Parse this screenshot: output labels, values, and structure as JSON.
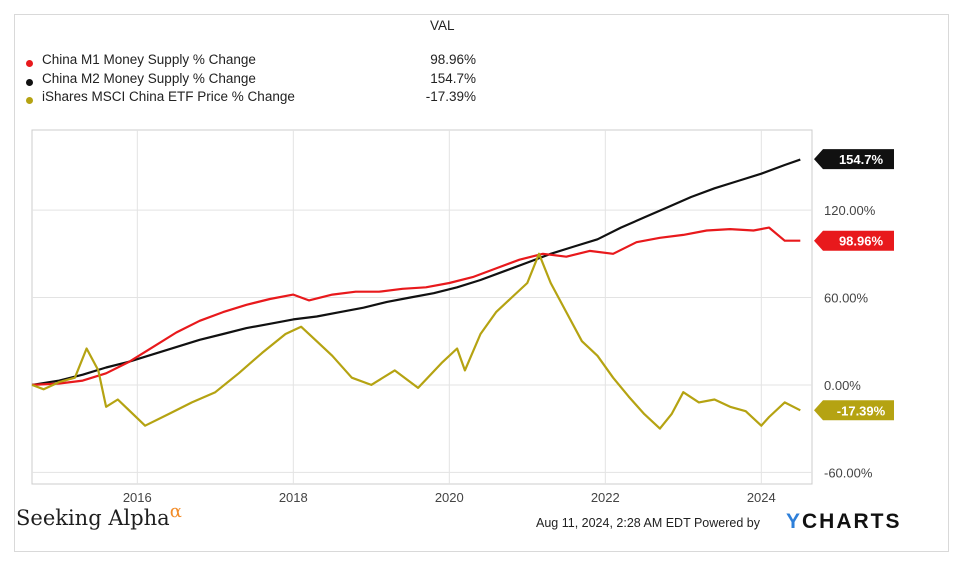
{
  "legend": {
    "value_header": "VAL",
    "items": [
      {
        "label": "China M1 Money Supply % Change",
        "value": "98.96%",
        "color": "#e8191c"
      },
      {
        "label": "China M2 Money Supply % Change",
        "value": "154.7%",
        "color": "#111111"
      },
      {
        "label": "iShares MSCI China ETF Price % Change",
        "value": "-17.39%",
        "color": "#b5a312"
      }
    ]
  },
  "chart_data": {
    "type": "line",
    "title": "",
    "xlabel": "",
    "ylabel": "",
    "xlim": [
      2014.65,
      2024.65
    ],
    "ylim": [
      -68,
      175
    ],
    "x_ticks": [
      2016,
      2018,
      2020,
      2022,
      2024
    ],
    "x_tick_labels": [
      "2016",
      "2018",
      "2020",
      "2022",
      "2024"
    ],
    "y_ticks": [
      -60,
      0,
      60,
      120
    ],
    "y_tick_labels": [
      "-60.00%",
      "0.00%",
      "60.00%",
      "120.00%"
    ],
    "grid": true,
    "legend_position": "top-left",
    "series": [
      {
        "name": "China M1 Money Supply % Change",
        "color": "#e8191c",
        "end_label": "98.96%",
        "x": [
          2014.65,
          2015.0,
          2015.3,
          2015.6,
          2015.9,
          2016.2,
          2016.5,
          2016.8,
          2017.1,
          2017.4,
          2017.7,
          2018.0,
          2018.2,
          2018.5,
          2018.8,
          2019.1,
          2019.4,
          2019.7,
          2020.0,
          2020.3,
          2020.6,
          2020.9,
          2021.2,
          2021.5,
          2021.8,
          2022.1,
          2022.4,
          2022.7,
          2023.0,
          2023.3,
          2023.6,
          2023.9,
          2024.1,
          2024.3,
          2024.5
        ],
        "y": [
          0,
          1,
          3,
          8,
          16,
          26,
          36,
          44,
          50,
          55,
          59,
          62,
          58,
          62,
          64,
          64,
          66,
          67,
          70,
          74,
          80,
          86,
          90,
          88,
          92,
          90,
          98,
          101,
          103,
          106,
          107,
          106,
          108,
          99,
          99
        ]
      },
      {
        "name": "China M2 Money Supply % Change",
        "color": "#111111",
        "end_label": "154.7%",
        "x": [
          2014.65,
          2015.0,
          2015.3,
          2015.6,
          2015.9,
          2016.2,
          2016.5,
          2016.8,
          2017.1,
          2017.4,
          2017.7,
          2018.0,
          2018.3,
          2018.6,
          2018.9,
          2019.2,
          2019.5,
          2019.8,
          2020.1,
          2020.4,
          2020.7,
          2021.0,
          2021.3,
          2021.6,
          2021.9,
          2022.2,
          2022.5,
          2022.8,
          2023.1,
          2023.4,
          2023.7,
          2024.0,
          2024.3,
          2024.5
        ],
        "y": [
          0,
          3,
          7,
          12,
          16,
          21,
          26,
          31,
          35,
          39,
          42,
          45,
          47,
          50,
          53,
          57,
          60,
          63,
          67,
          72,
          78,
          84,
          90,
          95,
          100,
          108,
          115,
          122,
          129,
          135,
          140,
          145,
          151,
          154.7
        ]
      },
      {
        "name": "iShares MSCI China ETF Price % Change",
        "color": "#b5a312",
        "end_label": "-17.39%",
        "x": [
          2014.65,
          2014.8,
          2015.0,
          2015.2,
          2015.35,
          2015.5,
          2015.6,
          2015.75,
          2016.1,
          2016.4,
          2016.7,
          2017.0,
          2017.3,
          2017.6,
          2017.9,
          2018.1,
          2018.3,
          2018.5,
          2018.75,
          2019.0,
          2019.3,
          2019.6,
          2019.9,
          2020.1,
          2020.2,
          2020.4,
          2020.6,
          2020.8,
          2021.0,
          2021.15,
          2021.3,
          2021.5,
          2021.7,
          2021.9,
          2022.1,
          2022.3,
          2022.5,
          2022.7,
          2022.85,
          2023.0,
          2023.2,
          2023.4,
          2023.6,
          2023.8,
          2024.0,
          2024.1,
          2024.3,
          2024.5
        ],
        "y": [
          0,
          -3,
          2,
          5,
          25,
          10,
          -15,
          -10,
          -28,
          -20,
          -12,
          -5,
          8,
          22,
          35,
          40,
          30,
          20,
          5,
          0,
          10,
          -2,
          15,
          25,
          10,
          35,
          50,
          60,
          70,
          90,
          70,
          50,
          30,
          20,
          5,
          -8,
          -20,
          -30,
          -20,
          -5,
          -12,
          -10,
          -15,
          -18,
          -28,
          -22,
          -12,
          -17.39
        ]
      }
    ]
  },
  "branding": {
    "source": "Seeking Alpha",
    "source_mark": "α",
    "footer": "Aug 11, 2024, 2:28 AM EDT Powered by",
    "provider_y": "Y",
    "provider_rest": "CHARTS"
  }
}
